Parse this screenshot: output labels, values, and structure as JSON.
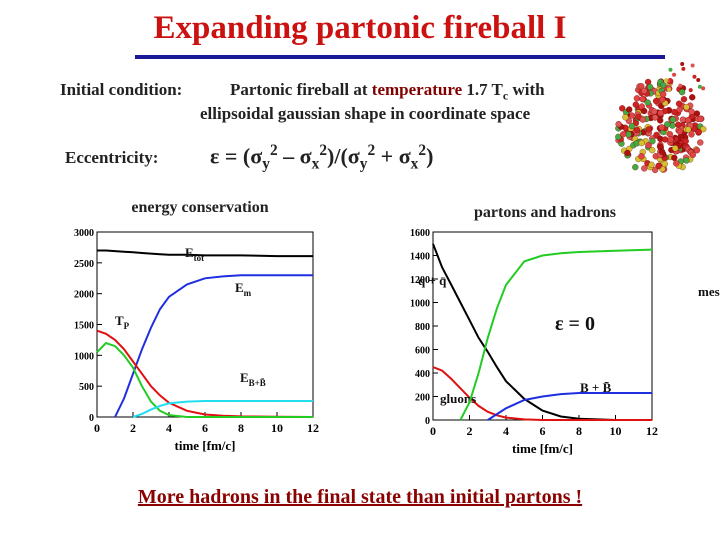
{
  "title": "Expanding partonic fireball I",
  "intro": {
    "label": "Initial condition:",
    "line1": [
      "Partonic fireball at ",
      "temperature",
      " 1.7 T",
      "c",
      " with"
    ],
    "line2": "ellipsoidal gaussian shape in coordinate space"
  },
  "eccentricity": {
    "label": "Eccentricity:",
    "formula": [
      {
        "text": "ε = (σ"
      },
      {
        "text": "y",
        "style": "sub"
      },
      {
        "text": "2",
        "style": "sup"
      },
      {
        "text": " – σ"
      },
      {
        "text": "x",
        "style": "sub"
      },
      {
        "text": "2",
        "style": "sup"
      },
      {
        "text": ")/(σ"
      },
      {
        "text": "y",
        "style": "sub"
      },
      {
        "text": "2",
        "style": "sup"
      },
      {
        "text": " + σ"
      },
      {
        "text": "x",
        "style": "sub"
      },
      {
        "text": "2",
        "style": "sup"
      },
      {
        "text": ")"
      }
    ]
  },
  "conclusion": "More hadrons in the final state than initial partons !",
  "chart_data": [
    {
      "type": "line",
      "title": "energy conservation",
      "x_label": "time [fm/c]",
      "x": [
        0,
        0.5,
        1,
        1.5,
        2,
        2.5,
        3,
        3.5,
        4,
        5,
        6,
        7,
        8,
        10,
        12
      ],
      "xlim": [
        0,
        12
      ],
      "xticks": [
        0,
        2,
        4,
        6,
        8,
        10,
        12
      ],
      "ylim": [
        0,
        3000
      ],
      "yticks": [
        0,
        500,
        1000,
        1500,
        2000,
        2500,
        3000
      ],
      "series": [
        {
          "label": "E",
          "label_sub": "tot",
          "color": "#000000",
          "values": [
            2700,
            2700,
            2690,
            2680,
            2670,
            2660,
            2650,
            2640,
            2630,
            2630,
            2620,
            2620,
            2620,
            2610,
            2610
          ]
        },
        {
          "label": "E",
          "label_sub": "m",
          "color": "#1f2fe0",
          "values": [
            null,
            null,
            0,
            300,
            700,
            1100,
            1450,
            1750,
            1950,
            2150,
            2250,
            2280,
            2300,
            2300,
            2300
          ]
        },
        {
          "label": "T",
          "label_sub": "P",
          "color": "#e01010",
          "values": [
            1400,
            1350,
            1250,
            1100,
            900,
            700,
            500,
            350,
            230,
            100,
            40,
            20,
            10,
            5,
            0
          ]
        },
        {
          "color": "#22cc22",
          "values": [
            1050,
            1200,
            1150,
            1000,
            800,
            500,
            250,
            100,
            30,
            0,
            0,
            0,
            0,
            0,
            0
          ]
        },
        {
          "label": "E",
          "label_sub": "B+B̄",
          "color": "#22ddee",
          "values": [
            null,
            null,
            null,
            null,
            0,
            50,
            120,
            180,
            220,
            250,
            260,
            260,
            260,
            260,
            260
          ]
        }
      ]
    },
    {
      "type": "line",
      "title": "partons and hadrons",
      "x_label": "time [fm/c]",
      "annotation": "ε = 0",
      "x": [
        0,
        0.5,
        1,
        1.5,
        2,
        2.5,
        3,
        3.5,
        4,
        5,
        6,
        7,
        8,
        10,
        12
      ],
      "xlim": [
        0,
        12
      ],
      "xticks": [
        0,
        2,
        4,
        6,
        8,
        10,
        12
      ],
      "ylim": [
        0,
        1600
      ],
      "yticks": [
        0,
        200,
        400,
        600,
        800,
        1000,
        1200,
        1400,
        1600
      ],
      "series": [
        {
          "label": "q + q̄",
          "color": "#000000",
          "values": [
            1500,
            1300,
            1150,
            1000,
            850,
            700,
            580,
            450,
            330,
            180,
            80,
            30,
            10,
            0,
            0
          ]
        },
        {
          "label": "gluons",
          "color": "#e01010",
          "values": [
            450,
            420,
            350,
            270,
            190,
            120,
            70,
            40,
            20,
            5,
            0,
            0,
            0,
            0,
            0
          ]
        },
        {
          "label": "mesons",
          "color": "#22cc22",
          "values": [
            null,
            null,
            null,
            0,
            150,
            400,
            700,
            950,
            1150,
            1350,
            1400,
            1420,
            1430,
            1440,
            1450
          ]
        },
        {
          "label": "B + B̄",
          "color": "#1f2fe0",
          "values": [
            null,
            null,
            null,
            null,
            null,
            null,
            0,
            50,
            100,
            170,
            200,
            220,
            230,
            230,
            230
          ]
        }
      ]
    }
  ]
}
